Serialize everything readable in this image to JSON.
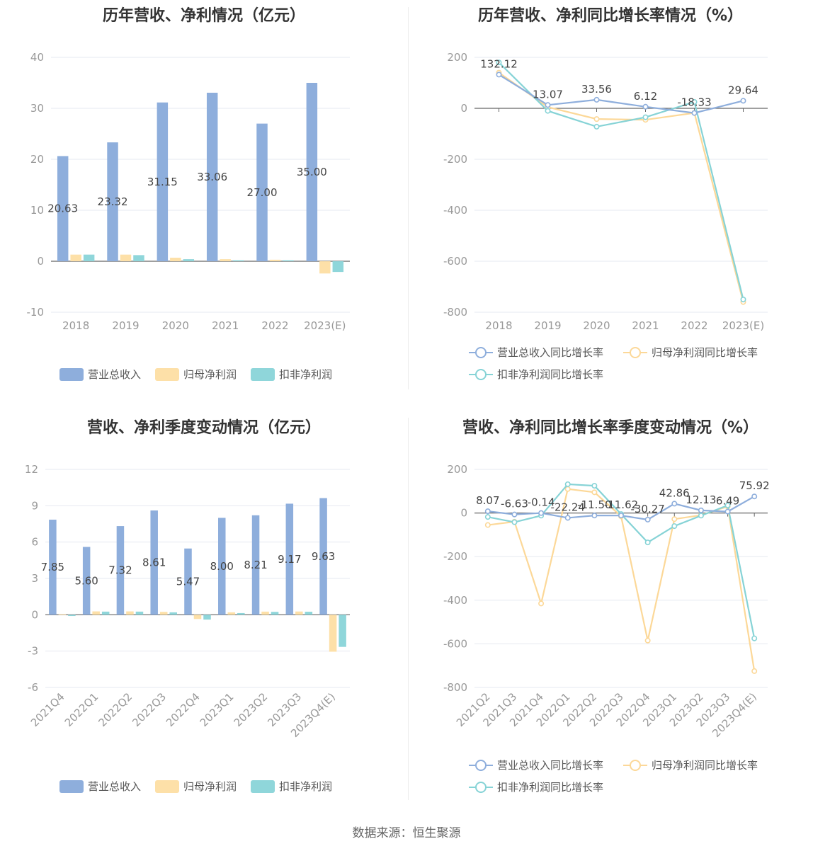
{
  "footer": "数据来源：恒生聚源",
  "colors": {
    "revenue": "#8eaedc",
    "net_profit": "#fde0a8",
    "deducted_profit": "#8fd6da",
    "revenue_line": "#8eaedc",
    "net_line": "#fcd898",
    "deducted_line": "#86d3d6",
    "grid": "#e6e9f0",
    "axis": "#666666"
  },
  "chart_data": [
    {
      "id": "annual_bar",
      "type": "bar",
      "title": "历年营收、净利情况（亿元）",
      "categories": [
        "2018",
        "2019",
        "2020",
        "2021",
        "2022",
        "2023(E)"
      ],
      "ylim": [
        -10,
        40
      ],
      "yticks": [
        -10,
        0,
        10,
        20,
        30,
        40
      ],
      "grid": true,
      "legend_position": "bottom",
      "series": [
        {
          "name": "营业总收入",
          "values": [
            20.63,
            23.32,
            31.15,
            33.06,
            27.0,
            35.0
          ],
          "labels": [
            "20.63",
            "23.32",
            "31.15",
            "33.06",
            "27.00",
            "35.00"
          ]
        },
        {
          "name": "归母净利润",
          "values": [
            1.3,
            1.3,
            0.7,
            0.4,
            0.3,
            -2.4
          ]
        },
        {
          "name": "扣非净利润",
          "values": [
            1.3,
            1.2,
            0.4,
            0.2,
            0.2,
            -2.1
          ]
        }
      ]
    },
    {
      "id": "annual_growth",
      "type": "line",
      "title": "历年营收、净利同比增长率情况（%）",
      "categories": [
        "2018",
        "2019",
        "2020",
        "2021",
        "2022",
        "2023(E)"
      ],
      "ylim": [
        -800,
        200
      ],
      "yticks": [
        -800,
        -600,
        -400,
        -200,
        0,
        200
      ],
      "grid": true,
      "legend_position": "bottom",
      "series": [
        {
          "name": "营业总收入同比增长率",
          "values": [
            132.12,
            13.07,
            33.56,
            6.12,
            -18.33,
            29.64
          ],
          "labels": [
            "132.12",
            "13.07",
            "33.56",
            "6.12",
            "-18.33",
            "29.64"
          ]
        },
        {
          "name": "归母净利润同比增长率",
          "values": [
            140,
            5,
            -42,
            -45,
            -18,
            -760
          ]
        },
        {
          "name": "扣非净利润同比增长率",
          "values": [
            180,
            -10,
            -72,
            -35,
            25,
            -750
          ]
        }
      ]
    },
    {
      "id": "quarter_bar",
      "type": "bar",
      "title": "营收、净利季度变动情况（亿元）",
      "categories": [
        "2021Q4",
        "2022Q1",
        "2022Q2",
        "2022Q3",
        "2022Q4",
        "2023Q1",
        "2023Q2",
        "2023Q3",
        "2023Q4(E)"
      ],
      "ylim": [
        -6,
        12
      ],
      "yticks": [
        -6,
        -3,
        0,
        3,
        6,
        9,
        12
      ],
      "grid": true,
      "legend_position": "bottom",
      "series": [
        {
          "name": "营业总收入",
          "values": [
            7.85,
            5.6,
            7.32,
            8.61,
            5.47,
            8.0,
            8.21,
            9.17,
            9.63
          ],
          "labels": [
            "7.85",
            "5.60",
            "7.32",
            "8.61",
            "5.47",
            "8.00",
            "8.21",
            "9.17",
            "9.63"
          ]
        },
        {
          "name": "归母净利润",
          "values": [
            0.05,
            0.28,
            0.28,
            0.24,
            -0.35,
            0.2,
            0.26,
            0.27,
            -3.05
          ]
        },
        {
          "name": "扣非净利润",
          "values": [
            -0.1,
            0.26,
            0.26,
            0.2,
            -0.4,
            0.14,
            0.24,
            0.25,
            -2.65
          ]
        }
      ]
    },
    {
      "id": "quarter_growth",
      "type": "line",
      "title": "营收、净利同比增长率季度变动情况（%）",
      "categories": [
        "2021Q2",
        "2021Q3",
        "2021Q4",
        "2022Q1",
        "2022Q2",
        "2022Q3",
        "2022Q4",
        "2023Q1",
        "2023Q2",
        "2023Q3",
        "2023Q4(E)"
      ],
      "ylim": [
        -800,
        200
      ],
      "yticks": [
        -800,
        -600,
        -400,
        -200,
        0,
        200
      ],
      "grid": true,
      "legend_position": "bottom",
      "series": [
        {
          "name": "营业总收入同比增长率",
          "values": [
            8.07,
            -6.63,
            -0.14,
            -22.24,
            -11.5,
            -11.62,
            -30.27,
            42.86,
            12.13,
            6.49,
            75.92
          ],
          "labels": [
            "8.07",
            "-6.63",
            "-0.14",
            "-22.24",
            "-11.50",
            "-11.62",
            "-30.27",
            "42.86",
            "12.13",
            "6.49",
            "75.92"
          ]
        },
        {
          "name": "归母净利润同比增长率",
          "values": [
            -55,
            -40,
            -415,
            110,
            95,
            -15,
            -585,
            -28,
            -10,
            30,
            -725
          ]
        },
        {
          "name": "扣非净利润同比增长率",
          "values": [
            -18,
            -42,
            -12,
            132,
            125,
            -5,
            -135,
            -60,
            -12,
            35,
            -575
          ]
        }
      ]
    }
  ]
}
